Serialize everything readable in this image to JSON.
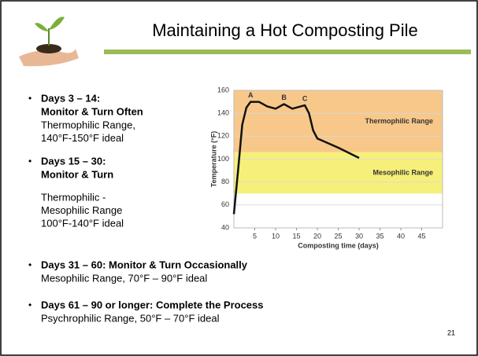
{
  "header": {
    "title": "Maintaining a Hot Composting Pile"
  },
  "left_bullets": [
    {
      "heading": [
        "Days 3 – 14:",
        "Monitor & Turn Often"
      ],
      "body": [
        "Thermophilic Range,",
        "140°F-150°F ideal"
      ]
    },
    {
      "heading": [
        "Days 15 – 30:",
        "Monitor & Turn"
      ],
      "body": [
        "Thermophilic -",
        "Mesophilic Range",
        "100°F-140°F ideal"
      ]
    }
  ],
  "bottom_bullets": [
    {
      "heading": "Days 31 – 60: Monitor & Turn Occasionally",
      "body": "Mesophilic Range, 70°F – 90°F ideal"
    },
    {
      "heading": "Days 61 – 90 or longer: Complete the Process",
      "body": "Psychrophilic Range, 50°F – 70°F ideal"
    }
  ],
  "page_number": "21",
  "chart_data": {
    "type": "line",
    "x_label": "Composting time (days)",
    "y_label": "Temperature (°F)",
    "xlim": [
      0,
      50
    ],
    "xticks": [
      5,
      10,
      15,
      20,
      25,
      30,
      35,
      40,
      45
    ],
    "ylim": [
      40,
      160
    ],
    "yticks": [
      40,
      60,
      80,
      100,
      120,
      140,
      160
    ],
    "grid": true,
    "bands": [
      {
        "name": "Thermophilic Range",
        "from": 106,
        "to": 160,
        "color": "#f8c88a"
      },
      {
        "name": "Mesophilic Range",
        "from": 70,
        "to": 106,
        "color": "#f6f07a"
      }
    ],
    "peak_labels": [
      "A",
      "B",
      "C"
    ],
    "series": [
      {
        "color": "#111111",
        "x": [
          0,
          1,
          2,
          3,
          4,
          6,
          8,
          10,
          12,
          14,
          16,
          17,
          18,
          19,
          20,
          25,
          30
        ],
        "values": [
          52,
          90,
          130,
          145,
          150,
          150,
          146,
          144,
          148,
          144,
          146,
          147,
          140,
          125,
          118,
          110,
          101
        ]
      }
    ]
  }
}
